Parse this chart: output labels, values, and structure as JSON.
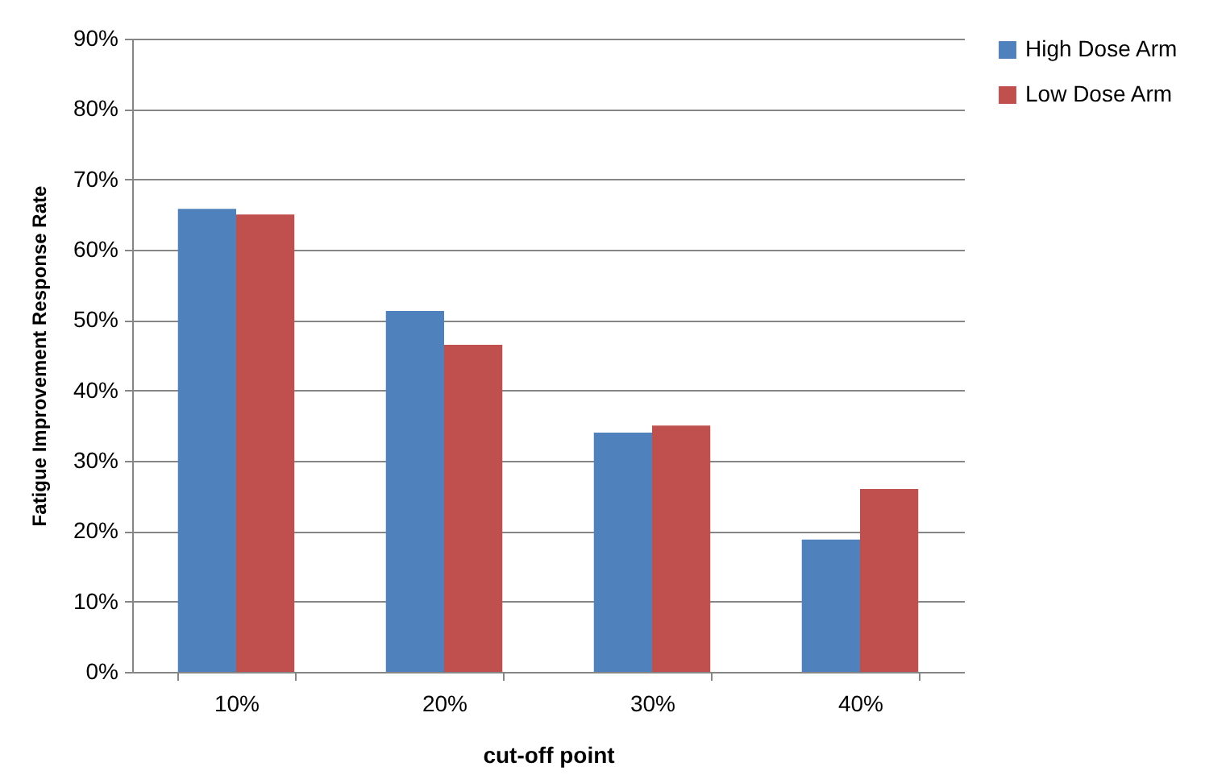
{
  "chart_data": {
    "type": "bar",
    "xlabel": "cut-off point",
    "ylabel": "Fatigue Improvement Response Rate",
    "categories": [
      "10%",
      "20%",
      "30%",
      "40%"
    ],
    "series": [
      {
        "name": "High Dose Arm",
        "color": "#4f81bd",
        "values": [
          65.8,
          51.3,
          34.0,
          18.8
        ]
      },
      {
        "name": "Low Dose Arm",
        "color": "#c0504d",
        "values": [
          65.0,
          46.5,
          35.0,
          26.0
        ]
      }
    ],
    "ylim": [
      0,
      90
    ],
    "yticks": [
      {
        "value": 0,
        "label": "0%"
      },
      {
        "value": 10,
        "label": "10%"
      },
      {
        "value": 20,
        "label": "20%"
      },
      {
        "value": 30,
        "label": "30%"
      },
      {
        "value": 40,
        "label": "40%"
      },
      {
        "value": 50,
        "label": "50%"
      },
      {
        "value": 60,
        "label": "60%"
      },
      {
        "value": 70,
        "label": "70%"
      },
      {
        "value": 80,
        "label": "80%"
      },
      {
        "value": 90,
        "label": "90%"
      }
    ],
    "grid": "y",
    "legend": "right"
  }
}
